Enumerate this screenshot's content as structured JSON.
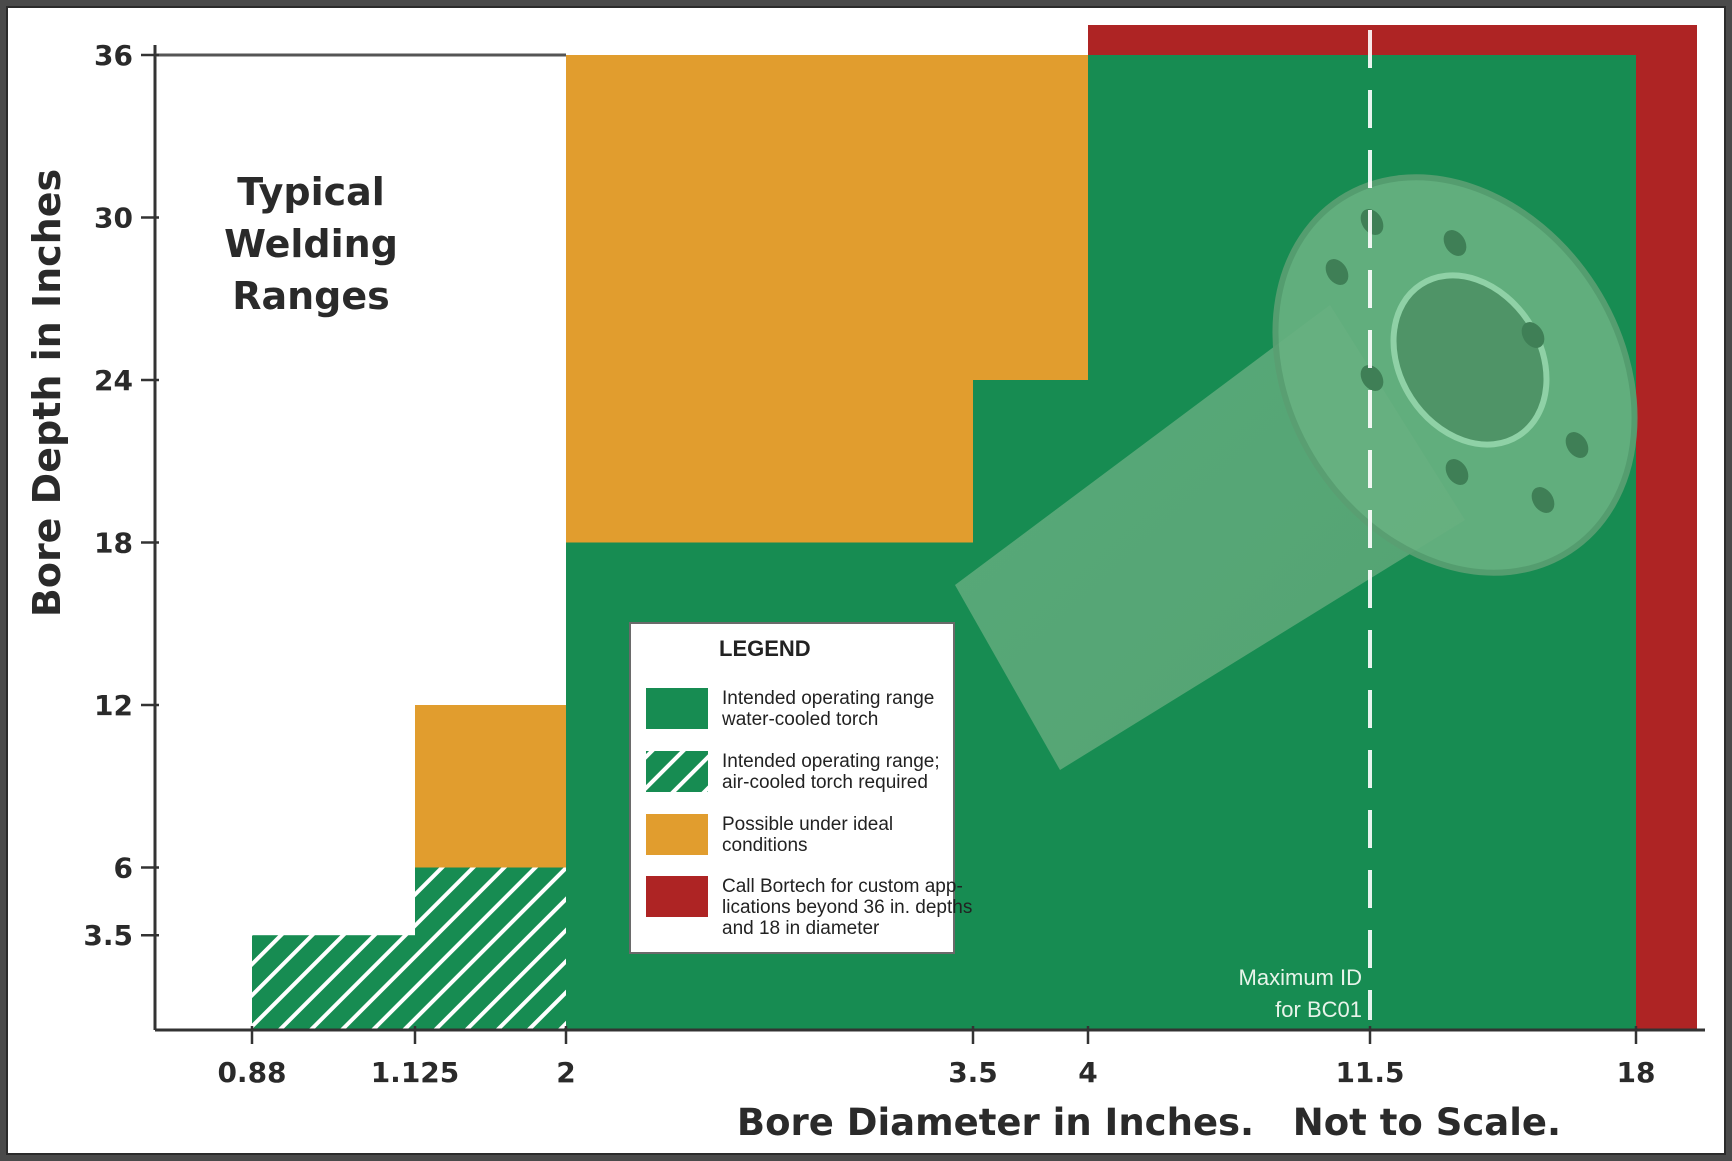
{
  "chart_data": {
    "type": "area",
    "title_lines": [
      "Typical",
      "Welding",
      "Ranges"
    ],
    "xlabel": "Bore Diameter in Inches.   Not to Scale.",
    "ylabel": "Bore Depth in Inches",
    "x_ticks": [
      "0.88",
      "1.125",
      "2",
      "3.5",
      "4",
      "11.5",
      "18"
    ],
    "y_ticks": [
      "36",
      "30",
      "24",
      "18",
      "12",
      "6",
      "3.5"
    ],
    "ylim": [
      0,
      36
    ],
    "x_scale": "categorical (not to scale)",
    "regions": [
      {
        "type": "air-cooled",
        "x": [
          "0.88",
          "1.125"
        ],
        "y": [
          0,
          3.5
        ]
      },
      {
        "type": "air-cooled",
        "x": [
          "1.125",
          "2"
        ],
        "y": [
          0,
          6
        ]
      },
      {
        "type": "possible",
        "x": [
          "1.125",
          "2"
        ],
        "y": [
          6,
          12
        ]
      },
      {
        "type": "possible",
        "x": [
          "2",
          "3.5"
        ],
        "y": [
          18,
          36
        ]
      },
      {
        "type": "possible",
        "x": [
          "3.5",
          "4"
        ],
        "y": [
          24,
          36
        ]
      },
      {
        "type": "water-cooled",
        "x": [
          "2",
          "3.5"
        ],
        "y": [
          0,
          18
        ]
      },
      {
        "type": "water-cooled",
        "x": [
          "3.5",
          "4"
        ],
        "y": [
          0,
          24
        ]
      },
      {
        "type": "water-cooled",
        "x": [
          "4",
          "18"
        ],
        "y": [
          0,
          36
        ]
      },
      {
        "type": "custom",
        "x": [
          "4",
          "18+"
        ],
        "y": [
          36,
          "36+"
        ]
      },
      {
        "type": "custom",
        "x": [
          "18",
          "18+"
        ],
        "y": [
          0,
          "36+"
        ]
      }
    ],
    "annotation": {
      "x": "11.5",
      "lines": [
        "Maximum ID",
        "for BC01"
      ]
    },
    "legend": {
      "title": "LEGEND",
      "placement": "center",
      "entries": [
        {
          "key": "water-cooled",
          "color": "#178c52",
          "lines": [
            "Intended operating range",
            "water-cooled torch"
          ]
        },
        {
          "key": "air-cooled",
          "color": "#178c52",
          "pattern": "hatch",
          "lines": [
            "Intended operating range;",
            "air-cooled torch required"
          ]
        },
        {
          "key": "possible",
          "color": "#e19d2e",
          "lines": [
            "Possible under ideal",
            "conditions"
          ]
        },
        {
          "key": "custom",
          "color": "#ae2424",
          "lines": [
            "Call Bortech for custom app-",
            "lications beyond 36 in. depths",
            "and 18 in diameter"
          ]
        }
      ]
    }
  }
}
